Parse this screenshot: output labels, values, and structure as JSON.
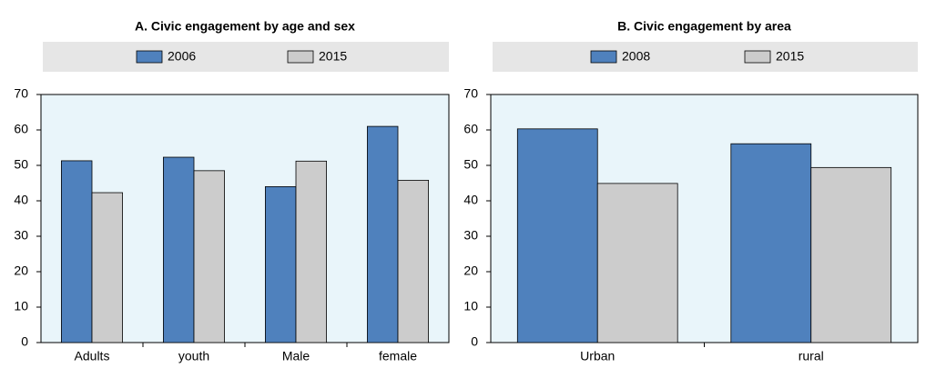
{
  "chart_data": [
    {
      "type": "bar",
      "title": "A. Civic engagement by age and sex",
      "categories": [
        "Adults",
        "youth",
        "Male",
        "female"
      ],
      "series": [
        {
          "name": "2006",
          "color": "#4f81bd",
          "values": [
            51.3,
            52.3,
            44.0,
            61.0
          ]
        },
        {
          "name": "2015",
          "color": "#cccccc",
          "values": [
            42.3,
            48.5,
            51.2,
            45.8
          ]
        }
      ],
      "ylim": [
        0,
        70
      ],
      "yticks": [
        0,
        10,
        20,
        30,
        40,
        50,
        60,
        70
      ]
    },
    {
      "type": "bar",
      "title": "B. Civic engagement by area",
      "categories": [
        "Urban",
        "rural"
      ],
      "series": [
        {
          "name": "2008",
          "color": "#4f81bd",
          "values": [
            60.3,
            56.1
          ]
        },
        {
          "name": "2015",
          "color": "#cccccc",
          "values": [
            44.9,
            49.4
          ]
        }
      ],
      "ylim": [
        0,
        70
      ],
      "yticks": [
        0,
        10,
        20,
        30,
        40,
        50,
        60,
        70
      ]
    }
  ]
}
